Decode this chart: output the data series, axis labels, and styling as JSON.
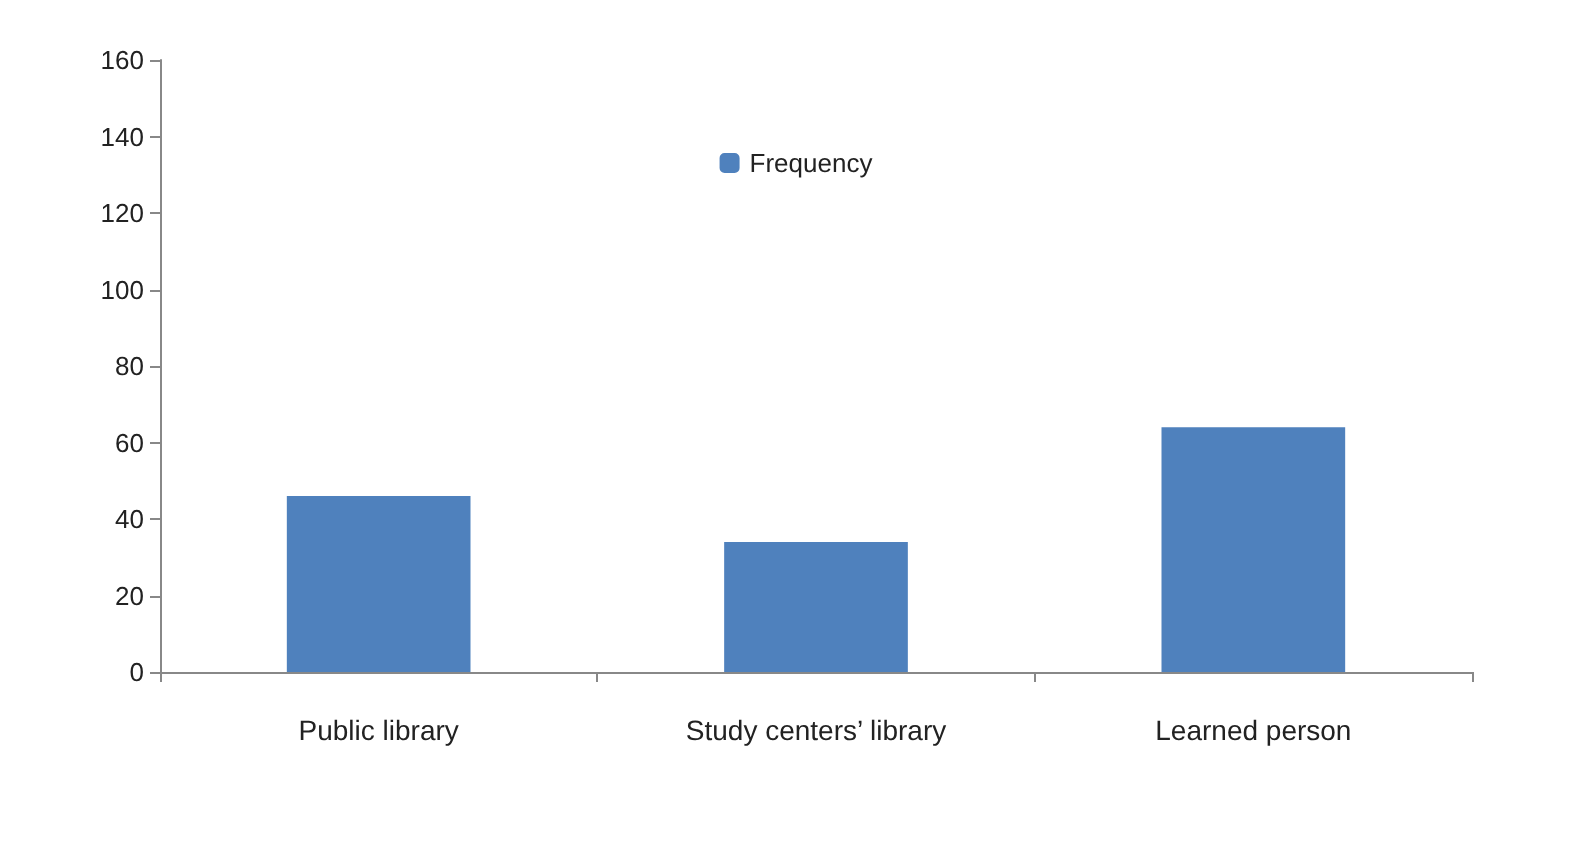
{
  "chart_data": {
    "type": "bar",
    "categories": [
      "Public library",
      "Study centers’ library",
      "Learned person"
    ],
    "series": [
      {
        "name": "Frequency",
        "color": "#4f81bd",
        "values": [
          46,
          34,
          64
        ]
      }
    ],
    "ylim": [
      0,
      160
    ],
    "yticks": [
      0,
      20,
      40,
      60,
      80,
      100,
      120,
      140,
      160
    ],
    "grid": false,
    "legend": "top"
  }
}
